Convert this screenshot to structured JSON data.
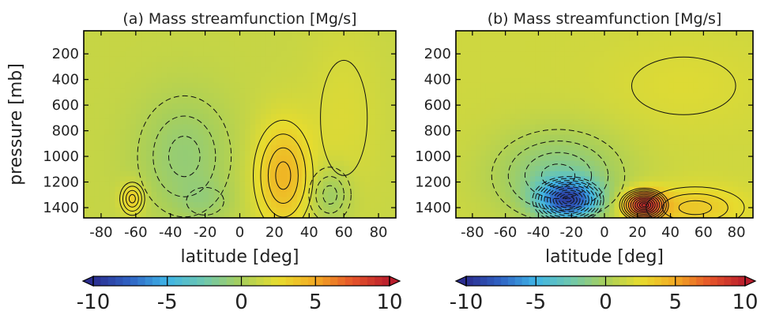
{
  "figure": {
    "colormap": [
      "#2b2d8f",
      "#2f63c4",
      "#3fb4e6",
      "#6ec7ad",
      "#a8cf5a",
      "#e7dc2e",
      "#f2a922",
      "#e5542a",
      "#b81d2c"
    ]
  },
  "chart_data": [
    {
      "type": "heatmap",
      "title": "(a) Mass streamfunction [Mg/s]",
      "xlabel": "latitude [deg]",
      "ylabel": "pressure [mb]",
      "x_ticks": [
        -80,
        -60,
        -40,
        -20,
        0,
        20,
        40,
        60,
        80
      ],
      "y_ticks": [
        200,
        400,
        600,
        800,
        1000,
        1200,
        1400
      ],
      "xlim": [
        -90,
        90
      ],
      "ylim": [
        1480,
        20
      ],
      "colorbar": {
        "ticks": [
          -10,
          -5,
          0,
          5,
          10
        ],
        "range": [
          -10,
          10
        ],
        "extend": "both"
      },
      "background_value": 1.2,
      "contour_style": "solid lines positive, dashed lines negative",
      "cells": [
        {
          "lat": -62,
          "p": 1330,
          "value": 2.5,
          "sigma_lat": 5,
          "sigma_p": 90
        },
        {
          "lat": -32,
          "p": 1000,
          "value": -2.0,
          "sigma_lat": 20,
          "sigma_p": 350
        },
        {
          "lat": -20,
          "p": 1350,
          "value": -1.0,
          "sigma_lat": 12,
          "sigma_p": 120
        },
        {
          "lat": 25,
          "p": 1150,
          "value": 3.2,
          "sigma_lat": 12,
          "sigma_p": 300
        },
        {
          "lat": 52,
          "p": 1300,
          "value": -2.0,
          "sigma_lat": 9,
          "sigma_p": 160
        },
        {
          "lat": 60,
          "p": 700,
          "value": 0.8,
          "sigma_lat": 15,
          "sigma_p": 500
        }
      ]
    },
    {
      "type": "heatmap",
      "title": "(b) Mass streamfunction [Mg/s]",
      "xlabel": "latitude [deg]",
      "ylabel": "",
      "x_ticks": [
        -80,
        -60,
        -40,
        -20,
        0,
        20,
        40,
        60,
        80
      ],
      "y_ticks": [
        200,
        400,
        600,
        800,
        1000,
        1200,
        1400
      ],
      "xlim": [
        -90,
        90
      ],
      "ylim": [
        1480,
        20
      ],
      "colorbar": {
        "ticks": [
          -10,
          -5,
          0,
          5,
          10
        ],
        "range": [
          -10,
          10
        ],
        "extend": "both"
      },
      "background_value": 1.5,
      "contour_style": "solid lines positive, dashed lines negative",
      "cells": [
        {
          "lat": -22,
          "p": 1340,
          "value": -8.5,
          "sigma_lat": 13,
          "sigma_p": 110
        },
        {
          "lat": -28,
          "p": 1150,
          "value": -3.0,
          "sigma_lat": 28,
          "sigma_p": 250
        },
        {
          "lat": 24,
          "p": 1380,
          "value": 7.5,
          "sigma_lat": 9,
          "sigma_p": 80
        },
        {
          "lat": 55,
          "p": 1400,
          "value": 2.0,
          "sigma_lat": 22,
          "sigma_p": 120
        },
        {
          "lat": 48,
          "p": 450,
          "value": 0.6,
          "sigma_lat": 35,
          "sigma_p": 250
        }
      ]
    }
  ]
}
